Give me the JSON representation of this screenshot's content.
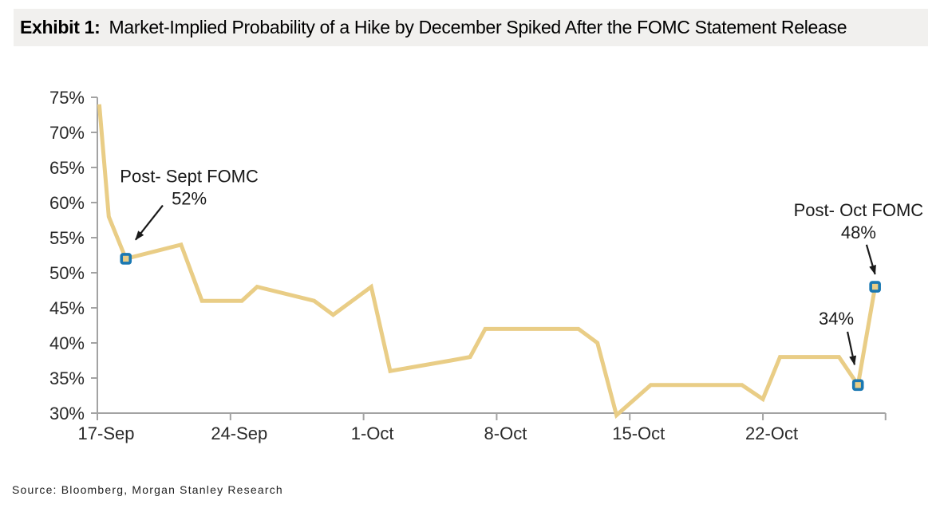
{
  "header": {
    "exhibit_label": "Exhibit 1:",
    "title": "Market-Implied Probability of a Hike by December Spiked After the FOMC Statement Release"
  },
  "footer": {
    "source": "Source: Bloomberg, Morgan Stanley Research"
  },
  "colors": {
    "line": "#e9cd86",
    "marker_border": "#1a78b2",
    "marker_fill": "#e9cd86",
    "axis": "#a3a3a3",
    "tick_label": "#2a2a2a",
    "annotation": "#1a1a1a",
    "title_bg": "#f1f0ee"
  },
  "chart_data": {
    "type": "line",
    "title": "Market-Implied Probability of a Hike by December Spiked After the FOMC Statement Release",
    "unit": "%",
    "x_axis": {
      "tick_labels": [
        "17-Sep",
        "24-Sep",
        "1-Oct",
        "8-Oct",
        "15-Oct",
        "22-Oct"
      ],
      "tick_days": [
        0,
        7,
        14,
        21,
        28,
        35
      ],
      "range_days": [
        0,
        41.45
      ],
      "grid": false
    },
    "y_axis": {
      "tick_values": [
        30,
        35,
        40,
        45,
        50,
        55,
        60,
        65,
        70,
        75
      ],
      "suffix": "%",
      "range": [
        30,
        75
      ],
      "grid": false
    },
    "series": [
      {
        "name": "market-implied probability of a December hike",
        "points": [
          [
            0.1,
            74
          ],
          [
            0.6,
            58
          ],
          [
            1.5,
            52
          ],
          [
            4.4,
            54
          ],
          [
            5.5,
            46
          ],
          [
            7.6,
            46
          ],
          [
            8.4,
            48
          ],
          [
            11.4,
            46
          ],
          [
            12.4,
            44
          ],
          [
            14.4,
            48
          ],
          [
            15.4,
            36
          ],
          [
            18.6,
            37.5
          ],
          [
            19.6,
            38
          ],
          [
            20.4,
            42
          ],
          [
            25.3,
            42
          ],
          [
            26.3,
            40
          ],
          [
            27.3,
            29.7
          ],
          [
            29.1,
            34
          ],
          [
            33.9,
            34
          ],
          [
            35.0,
            32
          ],
          [
            35.9,
            38
          ],
          [
            39.0,
            38
          ],
          [
            40.0,
            34
          ],
          [
            40.9,
            48
          ]
        ]
      }
    ],
    "markers": [
      {
        "day": 1.5,
        "value": 52,
        "label": "Post- Sept FOMC 52%"
      },
      {
        "day": 40.0,
        "value": 34,
        "label": "34%"
      },
      {
        "day": 40.9,
        "value": 48,
        "label": "Post- Oct FOMC 48%"
      }
    ],
    "annotations": [
      {
        "lines": [
          "Post- Sept FOMC",
          "52%"
        ],
        "anchor_day": 4.83,
        "anchor_value": 63.8,
        "arrow_from": [
          3.44,
          59.6
        ],
        "arrow_to": [
          2.01,
          54.7
        ]
      },
      {
        "lines": [
          "Post- Oct FOMC",
          "48%"
        ],
        "anchor_day": 40.03,
        "anchor_value": 59.0,
        "arrow_from": [
          40.45,
          54.0
        ],
        "arrow_to": [
          40.9,
          49.8
        ]
      },
      {
        "lines": [
          "34%"
        ],
        "anchor_day": 38.86,
        "anchor_value": 43.5,
        "arrow_from": [
          39.45,
          41.6
        ],
        "arrow_to": [
          39.82,
          36.9
        ]
      }
    ]
  }
}
